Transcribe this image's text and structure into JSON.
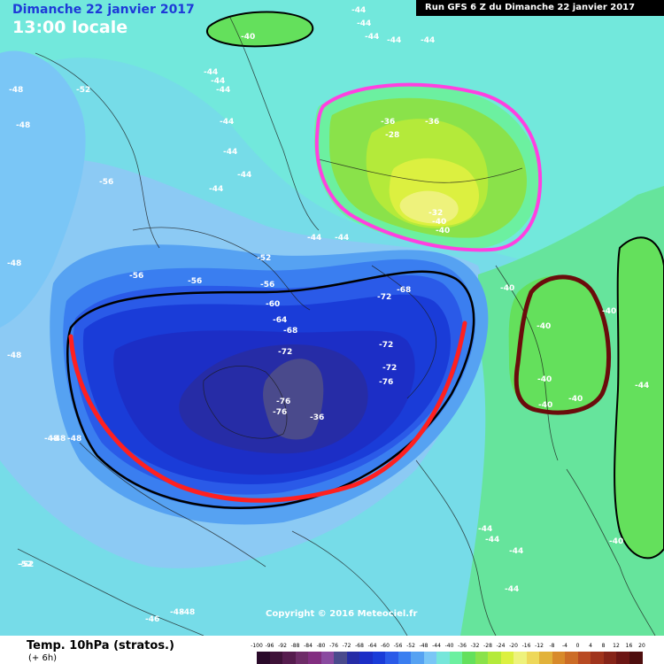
{
  "header": {
    "date_label": "Dimanche 22 janvier 2017",
    "time_label": "13:00 locale",
    "run_label": "Run GFS 6 Z du Dimanche 22 janvier 2017"
  },
  "footer": {
    "field_label": "Temp. 10hPa (stratos.)",
    "lead_label": "(+ 6h)",
    "copyright": "Copyright © 2016 Meteociel.fr"
  },
  "legend": {
    "ticks": [
      "-100",
      "-96",
      "-92",
      "-88",
      "-84",
      "-80",
      "-76",
      "-72",
      "-68",
      "-64",
      "-60",
      "-56",
      "-52",
      "-48",
      "-44",
      "-40",
      "-36",
      "-32",
      "-28",
      "-24",
      "-20",
      "-16",
      "-12",
      "-8",
      "-4",
      "0",
      "4",
      "8",
      "12",
      "16",
      "20"
    ],
    "colors": [
      "#2a0a2a",
      "#3e1238",
      "#561c4e",
      "#6e2c68",
      "#822e80",
      "#8a4aa0",
      "#4a4a8c",
      "#262ca6",
      "#1c2ec6",
      "#1a3cd8",
      "#2a5ae8",
      "#3a7ef0",
      "#56a2f2",
      "#7ac6f6",
      "#76e6da",
      "#6cf0a0",
      "#64e05c",
      "#8ae24a",
      "#b4ea3a",
      "#dcf040",
      "#eef27c",
      "#eed85a",
      "#e2b23a",
      "#d88a2a",
      "#cc6c26",
      "#b84a22",
      "#a0341c",
      "#862418",
      "#6c1614",
      "#4e0e0e"
    ]
  },
  "map": {
    "contour_labels": [
      "-40",
      "-44",
      "-44",
      "-44",
      "-44",
      "-44",
      "-44",
      "-44",
      "-44",
      "-44",
      "-44",
      "-44",
      "-44",
      "-48",
      "-48",
      "-48",
      "-48",
      "-48",
      "-52",
      "-52",
      "-52",
      "-56",
      "-56",
      "-56",
      "-56",
      "-60",
      "-64",
      "-68",
      "-68",
      "-72",
      "-72",
      "-72",
      "-72",
      "-76",
      "-76",
      "-76",
      "-36",
      "-36",
      "-36",
      "-28",
      "-32",
      "-40",
      "-40",
      "-40",
      "-40",
      "-40",
      "-40",
      "-40",
      "-40",
      "-40",
      "-44",
      "-44",
      "-44",
      "-44",
      "-44",
      "-44",
      "-44",
      "-46",
      "-48",
      "-48",
      "-48",
      "-48",
      "-52"
    ],
    "circle_colors": {
      "warm_outline": "#ff40e0",
      "green_outline": "#6a0c0c",
      "cold_outline": "#ff2020"
    }
  }
}
